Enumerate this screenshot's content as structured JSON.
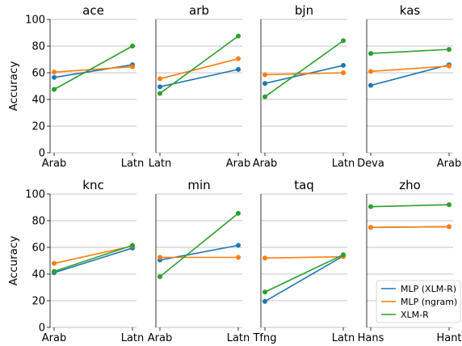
{
  "chart_data": {
    "type": "line",
    "ylabel": "Accuracy",
    "ylim": [
      0,
      100
    ],
    "yticks": [
      0,
      20,
      40,
      60,
      80,
      100
    ],
    "grid": "horizontal",
    "legend": {
      "placement": "bottom-right",
      "entries": [
        "MLP (XLM-R)",
        "MLP (ngram)",
        "XLM-R"
      ]
    },
    "series_colors": {
      "MLP (XLM-R)": "#1f77b4",
      "MLP (ngram)": "#ff7f0e",
      "XLM-R": "#2ca02c"
    },
    "panels": [
      {
        "title": "ace",
        "categories": [
          "Arab",
          "Latn"
        ],
        "series": [
          {
            "name": "MLP (XLM-R)",
            "values": [
              56.5,
              66
            ]
          },
          {
            "name": "MLP (ngram)",
            "values": [
              60.5,
              64.5
            ]
          },
          {
            "name": "XLM-R",
            "values": [
              47.5,
              80
            ]
          }
        ]
      },
      {
        "title": "arb",
        "categories": [
          "Latn",
          "Arab"
        ],
        "series": [
          {
            "name": "MLP (XLM-R)",
            "values": [
              49.5,
              62.5
            ]
          },
          {
            "name": "MLP (ngram)",
            "values": [
              55.5,
              70.5
            ]
          },
          {
            "name": "XLM-R",
            "values": [
              44.5,
              87.5
            ]
          }
        ]
      },
      {
        "title": "bjn",
        "categories": [
          "Arab",
          "Latn"
        ],
        "series": [
          {
            "name": "MLP (XLM-R)",
            "values": [
              52,
              65.5
            ]
          },
          {
            "name": "MLP (ngram)",
            "values": [
              58.5,
              60
            ]
          },
          {
            "name": "XLM-R",
            "values": [
              42,
              84
            ]
          }
        ]
      },
      {
        "title": "kas",
        "categories": [
          "Deva",
          "Arab"
        ],
        "series": [
          {
            "name": "MLP (XLM-R)",
            "values": [
              50.5,
              66
            ]
          },
          {
            "name": "MLP (ngram)",
            "values": [
              61,
              65
            ]
          },
          {
            "name": "XLM-R",
            "values": [
              74.5,
              77.5
            ]
          }
        ]
      },
      {
        "title": "knc",
        "categories": [
          "Arab",
          "Latn"
        ],
        "series": [
          {
            "name": "MLP (XLM-R)",
            "values": [
              41,
              59.5
            ]
          },
          {
            "name": "MLP (ngram)",
            "values": [
              48,
              61
            ]
          },
          {
            "name": "XLM-R",
            "values": [
              42,
              61.5
            ]
          }
        ]
      },
      {
        "title": "min",
        "categories": [
          "Arab",
          "Latn"
        ],
        "series": [
          {
            "name": "MLP (XLM-R)",
            "values": [
              50.5,
              61.5
            ]
          },
          {
            "name": "MLP (ngram)",
            "values": [
              52.5,
              52.5
            ]
          },
          {
            "name": "XLM-R",
            "values": [
              38,
              85.5
            ]
          }
        ]
      },
      {
        "title": "taq",
        "categories": [
          "Tfng",
          "Latn"
        ],
        "series": [
          {
            "name": "MLP (XLM-R)",
            "values": [
              19.5,
              53.5
            ]
          },
          {
            "name": "MLP (ngram)",
            "values": [
              52,
              53
            ]
          },
          {
            "name": "XLM-R",
            "values": [
              26.5,
              54.5
            ]
          }
        ]
      },
      {
        "title": "zho",
        "categories": [
          "Hans",
          "Hant"
        ],
        "series": [
          {
            "name": "MLP (XLM-R)",
            "values": [
              75,
              75.5
            ]
          },
          {
            "name": "MLP (ngram)",
            "values": [
              75,
              75.5
            ]
          },
          {
            "name": "XLM-R",
            "values": [
              90.5,
              92
            ]
          }
        ]
      }
    ]
  }
}
